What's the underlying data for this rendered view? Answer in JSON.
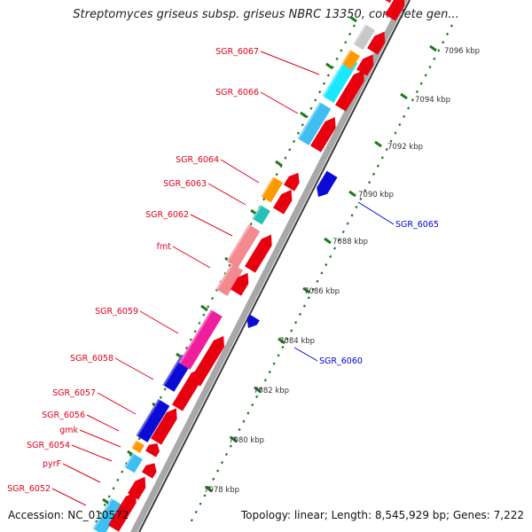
{
  "title": "Streptomyces griseus subsp. griseus NBRC 13350, complete gen...",
  "footer": {
    "accession": "Accession: NC_010572",
    "topology": "Topology: linear; Length: 8,545,929 bp; Genes: 7,222"
  },
  "colors": {
    "forward_strand": "#e0001b",
    "reverse_label": "#0000d0",
    "backbone": "#a6a6a6",
    "tick": "#1e7a1e"
  },
  "scale_labels": [
    "7078 kbp",
    "7080 kbp",
    "7082 kbp",
    "7084 kbp",
    "7086 kbp",
    "7088 kbp",
    "7090 kbp",
    "7092 kbp",
    "7094 kbp",
    "7096 kbp"
  ],
  "gene_labels": {
    "left": [
      "SGR_6067",
      "SGR_6066",
      "SGR_6064",
      "SGR_6063",
      "SGR_6062",
      "fmt",
      "SGR_6059",
      "SGR_6058",
      "SGR_6057",
      "SGR_6056",
      "gmk",
      "SGR_6054",
      "pyrF",
      "SGR_6052"
    ],
    "right": [
      "SGR_6065",
      "SGR_6060"
    ]
  }
}
